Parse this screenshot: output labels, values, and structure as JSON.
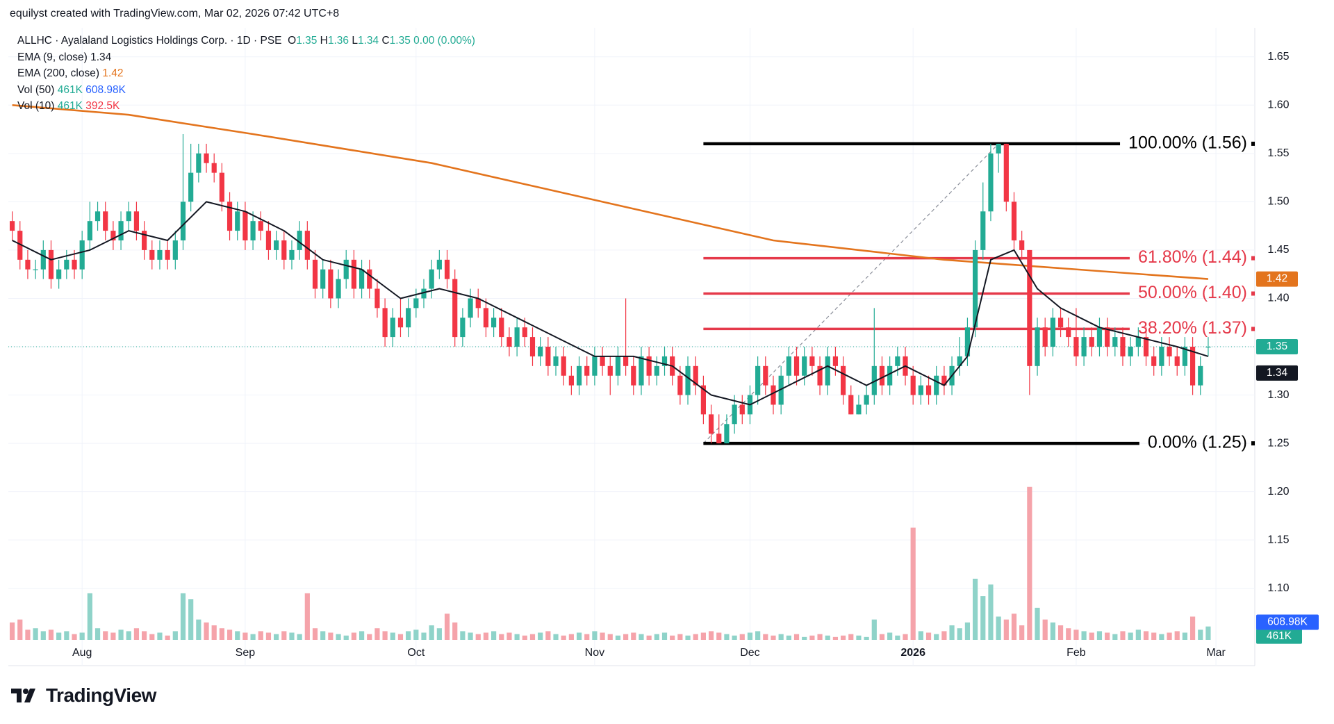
{
  "header": {
    "attribution": "equilyst created with TradingView.com, Mar 02, 2026 07:42 UTC+8"
  },
  "footer": {
    "brand": "TradingView"
  },
  "chart_data": {
    "type": "candlestick",
    "title": "ALLHC · Ayalaland Logistics Holdings Corp. · 1D · PSE",
    "quote": {
      "open_label": "O",
      "open": 1.35,
      "high_label": "H",
      "high": 1.36,
      "low_label": "L",
      "low": 1.34,
      "close_label": "C",
      "close": 1.35,
      "change": "0.00 (0.00%)"
    },
    "colors": {
      "up": "#22ab94",
      "down": "#f23645",
      "up_volume": "#8fd3c9",
      "down_volume": "#f5a3aa",
      "text": "#131722"
    },
    "indicators": [
      {
        "name": "EMA (9, close)",
        "value": 1.34,
        "color": "#131722",
        "x": [
          0,
          5,
          10,
          15,
          20,
          25,
          30,
          35,
          40,
          45,
          50,
          55,
          60,
          65,
          70,
          75,
          80,
          85,
          90,
          95,
          100,
          105,
          110,
          115,
          120,
          123,
          126,
          129,
          132,
          135,
          140,
          145,
          150,
          154
        ],
        "values": [
          1.46,
          1.44,
          1.45,
          1.47,
          1.46,
          1.5,
          1.49,
          1.47,
          1.44,
          1.43,
          1.4,
          1.41,
          1.4,
          1.38,
          1.36,
          1.34,
          1.34,
          1.33,
          1.3,
          1.29,
          1.31,
          1.33,
          1.31,
          1.33,
          1.31,
          1.34,
          1.44,
          1.45,
          1.41,
          1.39,
          1.37,
          1.36,
          1.35,
          1.34
        ]
      },
      {
        "name": "EMA (200, close)",
        "value": 1.42,
        "color": "#e3741d",
        "x": [
          0,
          15,
          31,
          54,
          76,
          98,
          120,
          154
        ],
        "values": [
          1.6,
          1.59,
          1.57,
          1.54,
          1.5,
          1.46,
          1.44,
          1.42
        ]
      },
      {
        "name": "Vol (50)",
        "readings": [
          {
            "value": 461,
            "label": "461K",
            "color": "#22ab94"
          },
          {
            "value": 608.98,
            "label": "608.98K",
            "color": "#2962ff"
          }
        ]
      },
      {
        "name": "Vol (10)",
        "readings": [
          {
            "value": 461,
            "label": "461K",
            "color": "#22ab94"
          },
          {
            "value": 392.5,
            "label": "392.5K",
            "color": "#f23645"
          }
        ]
      }
    ],
    "candles": [
      [
        1.48,
        1.49,
        1.46,
        1.47
      ],
      [
        1.47,
        1.48,
        1.43,
        1.44
      ],
      [
        1.44,
        1.45,
        1.42,
        1.43
      ],
      [
        1.43,
        1.44,
        1.42,
        1.43
      ],
      [
        1.43,
        1.46,
        1.42,
        1.45
      ],
      [
        1.45,
        1.46,
        1.41,
        1.42
      ],
      [
        1.42,
        1.44,
        1.41,
        1.43
      ],
      [
        1.43,
        1.45,
        1.42,
        1.44
      ],
      [
        1.44,
        1.45,
        1.42,
        1.43
      ],
      [
        1.43,
        1.47,
        1.42,
        1.46
      ],
      [
        1.46,
        1.5,
        1.45,
        1.48
      ],
      [
        1.48,
        1.5,
        1.47,
        1.49
      ],
      [
        1.49,
        1.5,
        1.46,
        1.47
      ],
      [
        1.47,
        1.48,
        1.45,
        1.46
      ],
      [
        1.46,
        1.49,
        1.45,
        1.48
      ],
      [
        1.48,
        1.5,
        1.47,
        1.49
      ],
      [
        1.49,
        1.5,
        1.46,
        1.47
      ],
      [
        1.47,
        1.48,
        1.44,
        1.45
      ],
      [
        1.45,
        1.46,
        1.43,
        1.44
      ],
      [
        1.44,
        1.46,
        1.43,
        1.45
      ],
      [
        1.45,
        1.46,
        1.43,
        1.44
      ],
      [
        1.44,
        1.47,
        1.43,
        1.46
      ],
      [
        1.46,
        1.57,
        1.45,
        1.5
      ],
      [
        1.5,
        1.56,
        1.49,
        1.53
      ],
      [
        1.53,
        1.56,
        1.52,
        1.55
      ],
      [
        1.55,
        1.56,
        1.53,
        1.54
      ],
      [
        1.54,
        1.55,
        1.52,
        1.53
      ],
      [
        1.53,
        1.54,
        1.49,
        1.5
      ],
      [
        1.5,
        1.51,
        1.46,
        1.47
      ],
      [
        1.47,
        1.5,
        1.46,
        1.49
      ],
      [
        1.49,
        1.5,
        1.45,
        1.46
      ],
      [
        1.46,
        1.49,
        1.45,
        1.48
      ],
      [
        1.48,
        1.49,
        1.46,
        1.47
      ],
      [
        1.47,
        1.48,
        1.44,
        1.45
      ],
      [
        1.45,
        1.47,
        1.44,
        1.46
      ],
      [
        1.46,
        1.47,
        1.43,
        1.44
      ],
      [
        1.44,
        1.46,
        1.43,
        1.45
      ],
      [
        1.45,
        1.48,
        1.44,
        1.47
      ],
      [
        1.47,
        1.48,
        1.43,
        1.44
      ],
      [
        1.44,
        1.45,
        1.4,
        1.41
      ],
      [
        1.41,
        1.44,
        1.4,
        1.43
      ],
      [
        1.43,
        1.44,
        1.39,
        1.4
      ],
      [
        1.4,
        1.43,
        1.39,
        1.42
      ],
      [
        1.42,
        1.45,
        1.41,
        1.44
      ],
      [
        1.44,
        1.45,
        1.4,
        1.41
      ],
      [
        1.41,
        1.44,
        1.4,
        1.43
      ],
      [
        1.43,
        1.44,
        1.4,
        1.41
      ],
      [
        1.41,
        1.42,
        1.38,
        1.39
      ],
      [
        1.39,
        1.4,
        1.35,
        1.36
      ],
      [
        1.36,
        1.39,
        1.35,
        1.38
      ],
      [
        1.38,
        1.4,
        1.36,
        1.37
      ],
      [
        1.37,
        1.4,
        1.36,
        1.39
      ],
      [
        1.39,
        1.41,
        1.38,
        1.4
      ],
      [
        1.4,
        1.42,
        1.39,
        1.41
      ],
      [
        1.41,
        1.44,
        1.4,
        1.43
      ],
      [
        1.43,
        1.45,
        1.42,
        1.44
      ],
      [
        1.44,
        1.45,
        1.41,
        1.42
      ],
      [
        1.42,
        1.43,
        1.35,
        1.36
      ],
      [
        1.36,
        1.39,
        1.35,
        1.38
      ],
      [
        1.38,
        1.41,
        1.37,
        1.4
      ],
      [
        1.4,
        1.41,
        1.38,
        1.39
      ],
      [
        1.39,
        1.4,
        1.36,
        1.37
      ],
      [
        1.37,
        1.39,
        1.36,
        1.38
      ],
      [
        1.38,
        1.39,
        1.35,
        1.36
      ],
      [
        1.36,
        1.37,
        1.34,
        1.35
      ],
      [
        1.35,
        1.38,
        1.34,
        1.37
      ],
      [
        1.37,
        1.38,
        1.35,
        1.36
      ],
      [
        1.36,
        1.37,
        1.33,
        1.34
      ],
      [
        1.34,
        1.36,
        1.33,
        1.35
      ],
      [
        1.35,
        1.36,
        1.32,
        1.33
      ],
      [
        1.33,
        1.35,
        1.32,
        1.34
      ],
      [
        1.34,
        1.35,
        1.31,
        1.32
      ],
      [
        1.32,
        1.33,
        1.3,
        1.31
      ],
      [
        1.31,
        1.34,
        1.3,
        1.33
      ],
      [
        1.33,
        1.34,
        1.31,
        1.32
      ],
      [
        1.32,
        1.35,
        1.31,
        1.34
      ],
      [
        1.34,
        1.35,
        1.32,
        1.33
      ],
      [
        1.33,
        1.34,
        1.3,
        1.32
      ],
      [
        1.32,
        1.35,
        1.31,
        1.34
      ],
      [
        1.34,
        1.4,
        1.32,
        1.33
      ],
      [
        1.33,
        1.34,
        1.3,
        1.31
      ],
      [
        1.31,
        1.35,
        1.3,
        1.34
      ],
      [
        1.34,
        1.35,
        1.31,
        1.32
      ],
      [
        1.32,
        1.34,
        1.31,
        1.33
      ],
      [
        1.33,
        1.35,
        1.32,
        1.34
      ],
      [
        1.34,
        1.35,
        1.31,
        1.32
      ],
      [
        1.32,
        1.33,
        1.29,
        1.3
      ],
      [
        1.3,
        1.34,
        1.29,
        1.33
      ],
      [
        1.33,
        1.34,
        1.3,
        1.31
      ],
      [
        1.31,
        1.32,
        1.27,
        1.28
      ],
      [
        1.28,
        1.29,
        1.25,
        1.26
      ],
      [
        1.26,
        1.28,
        1.25,
        1.25
      ],
      [
        1.25,
        1.28,
        1.25,
        1.27
      ],
      [
        1.27,
        1.3,
        1.26,
        1.29
      ],
      [
        1.29,
        1.3,
        1.27,
        1.28
      ],
      [
        1.28,
        1.31,
        1.27,
        1.3
      ],
      [
        1.3,
        1.34,
        1.29,
        1.33
      ],
      [
        1.33,
        1.34,
        1.3,
        1.31
      ],
      [
        1.31,
        1.32,
        1.28,
        1.29
      ],
      [
        1.29,
        1.33,
        1.28,
        1.32
      ],
      [
        1.32,
        1.35,
        1.31,
        1.34
      ],
      [
        1.34,
        1.35,
        1.31,
        1.32
      ],
      [
        1.32,
        1.35,
        1.31,
        1.34
      ],
      [
        1.34,
        1.35,
        1.32,
        1.33
      ],
      [
        1.33,
        1.34,
        1.3,
        1.31
      ],
      [
        1.31,
        1.35,
        1.3,
        1.34
      ],
      [
        1.34,
        1.35,
        1.32,
        1.33
      ],
      [
        1.33,
        1.34,
        1.29,
        1.3
      ],
      [
        1.3,
        1.31,
        1.28,
        1.28
      ],
      [
        1.28,
        1.3,
        1.28,
        1.29
      ],
      [
        1.29,
        1.31,
        1.28,
        1.3
      ],
      [
        1.3,
        1.39,
        1.29,
        1.33
      ],
      [
        1.33,
        1.34,
        1.3,
        1.31
      ],
      [
        1.31,
        1.34,
        1.3,
        1.33
      ],
      [
        1.33,
        1.35,
        1.32,
        1.34
      ],
      [
        1.34,
        1.35,
        1.31,
        1.32
      ],
      [
        1.32,
        1.33,
        1.29,
        1.3
      ],
      [
        1.3,
        1.32,
        1.29,
        1.31
      ],
      [
        1.31,
        1.32,
        1.29,
        1.3
      ],
      [
        1.3,
        1.33,
        1.29,
        1.32
      ],
      [
        1.32,
        1.33,
        1.3,
        1.31
      ],
      [
        1.31,
        1.34,
        1.3,
        1.33
      ],
      [
        1.33,
        1.36,
        1.32,
        1.34
      ],
      [
        1.34,
        1.38,
        1.33,
        1.37
      ],
      [
        1.37,
        1.46,
        1.36,
        1.45
      ],
      [
        1.45,
        1.52,
        1.44,
        1.49
      ],
      [
        1.49,
        1.56,
        1.48,
        1.55
      ],
      [
        1.55,
        1.56,
        1.53,
        1.56
      ],
      [
        1.56,
        1.56,
        1.49,
        1.5
      ],
      [
        1.5,
        1.51,
        1.45,
        1.46
      ],
      [
        1.46,
        1.47,
        1.44,
        1.45
      ],
      [
        1.45,
        1.45,
        1.3,
        1.33
      ],
      [
        1.33,
        1.38,
        1.32,
        1.37
      ],
      [
        1.37,
        1.38,
        1.34,
        1.35
      ],
      [
        1.35,
        1.39,
        1.34,
        1.38
      ],
      [
        1.38,
        1.39,
        1.36,
        1.37
      ],
      [
        1.37,
        1.38,
        1.35,
        1.36
      ],
      [
        1.36,
        1.39,
        1.33,
        1.34
      ],
      [
        1.34,
        1.37,
        1.33,
        1.36
      ],
      [
        1.36,
        1.37,
        1.34,
        1.35
      ],
      [
        1.35,
        1.38,
        1.34,
        1.37
      ],
      [
        1.37,
        1.38,
        1.34,
        1.35
      ],
      [
        1.35,
        1.37,
        1.34,
        1.36
      ],
      [
        1.36,
        1.37,
        1.33,
        1.34
      ],
      [
        1.34,
        1.36,
        1.33,
        1.35
      ],
      [
        1.35,
        1.37,
        1.34,
        1.36
      ],
      [
        1.36,
        1.37,
        1.33,
        1.34
      ],
      [
        1.34,
        1.35,
        1.32,
        1.33
      ],
      [
        1.33,
        1.36,
        1.32,
        1.35
      ],
      [
        1.35,
        1.36,
        1.33,
        1.34
      ],
      [
        1.34,
        1.35,
        1.32,
        1.33
      ],
      [
        1.33,
        1.36,
        1.32,
        1.35
      ],
      [
        1.35,
        1.36,
        1.3,
        1.31
      ],
      [
        1.31,
        1.34,
        1.3,
        1.33
      ],
      [
        1.35,
        1.36,
        1.34,
        1.35
      ]
    ],
    "volumes": [
      600,
      700,
      350,
      400,
      300,
      350,
      250,
      300,
      200,
      250,
      1600,
      400,
      300,
      250,
      350,
      300,
      400,
      300,
      200,
      250,
      150,
      300,
      1600,
      1400,
      700,
      600,
      500,
      400,
      350,
      300,
      250,
      200,
      300,
      250,
      200,
      300,
      250,
      200,
      1600,
      400,
      300,
      250,
      200,
      150,
      250,
      300,
      200,
      400,
      300,
      250,
      200,
      300,
      350,
      250,
      500,
      400,
      900,
      600,
      300,
      250,
      200,
      250,
      300,
      200,
      250,
      200,
      150,
      200,
      250,
      300,
      200,
      150,
      200,
      250,
      200,
      300,
      250,
      200,
      150,
      200,
      250,
      200,
      150,
      200,
      250,
      150,
      200,
      150,
      200,
      250,
      300,
      250,
      200,
      150,
      200,
      250,
      300,
      200,
      150,
      200,
      150,
      200,
      100,
      150,
      200,
      150,
      100,
      150,
      200,
      150,
      100,
      700,
      200,
      250,
      150,
      200,
      3850,
      300,
      250,
      200,
      300,
      500,
      400,
      600,
      2100,
      1500,
      1900,
      800,
      700,
      900,
      500,
      5250,
      1100,
      700,
      600,
      500,
      400,
      350,
      300,
      250,
      300,
      250,
      200,
      300,
      250,
      350,
      300,
      250,
      200,
      250,
      300,
      250,
      800,
      350,
      461
    ],
    "xlim": [
      -0.5,
      160
    ],
    "xticks": [
      {
        "value": 9,
        "label": "Aug"
      },
      {
        "value": 30,
        "label": "Sep"
      },
      {
        "value": 52,
        "label": "Oct"
      },
      {
        "value": 75,
        "label": "Nov"
      },
      {
        "value": 95,
        "label": "Dec"
      },
      {
        "value": 116,
        "label": "2026"
      },
      {
        "value": 137,
        "label": "Feb"
      },
      {
        "value": 155,
        "label": "Mar"
      }
    ],
    "ylim": [
      1.02,
      1.68
    ],
    "yticks": [
      {
        "value": 1.1,
        "label": "1.10"
      },
      1.15,
      {
        "value": 1.2,
        "label": "1.20"
      },
      1.25,
      {
        "value": 1.3,
        "label": "1.30"
      },
      1.35,
      {
        "value": 1.4,
        "label": "1.40"
      },
      1.45,
      {
        "value": 1.5,
        "label": "1.50"
      },
      1.55,
      {
        "value": 1.6,
        "label": "1.60"
      },
      1.65
    ],
    "volume_lim": [
      0,
      21000
    ],
    "grid": true,
    "fib": {
      "anchors": [
        {
          "x": 89,
          "y": 1.25
        },
        {
          "x": 127,
          "y": 1.56
        }
      ],
      "levels": [
        {
          "value": 1.56,
          "label": "100.00% (1.56)",
          "color": "#000000"
        },
        {
          "value": 1.4416,
          "label": "61.80% (1.44)",
          "color": "#e5394a"
        },
        {
          "value": 1.405,
          "label": "50.00% (1.40)",
          "color": "#e5394a"
        },
        {
          "value": 1.3684,
          "label": "38.20% (1.37)",
          "color": "#e5394a"
        },
        {
          "value": 1.25,
          "label": "0.00% (1.25)",
          "color": "#000000"
        }
      ]
    }
  }
}
